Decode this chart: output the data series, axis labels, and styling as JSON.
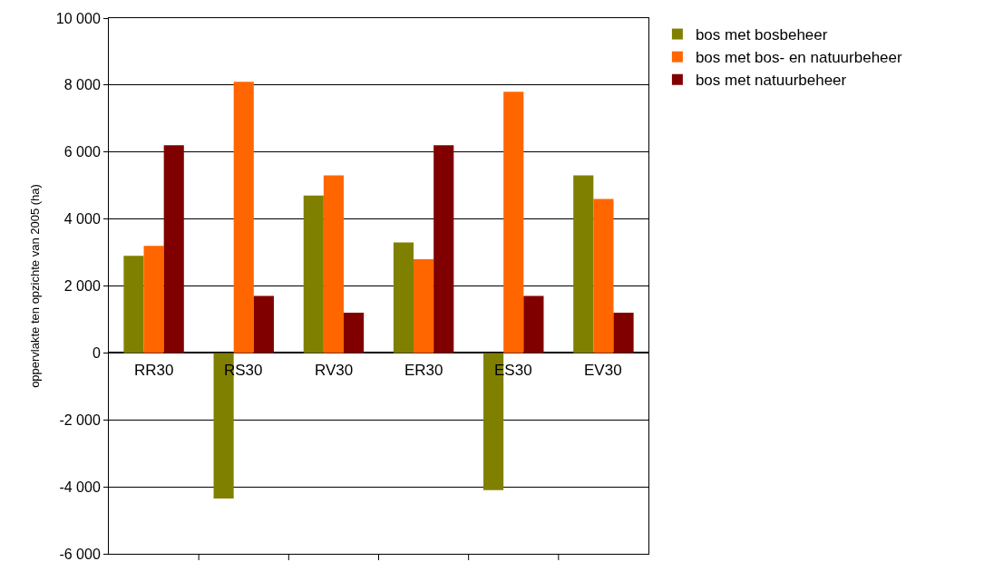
{
  "chart_data": {
    "type": "bar",
    "ylabel": "oppervlakte ten opzichte van 2005 (ha)",
    "categories": [
      "RR30",
      "RS30",
      "RV30",
      "ER30",
      "ES30",
      "EV30"
    ],
    "series": [
      {
        "name": "bos met bosbeheer",
        "color": "#808000",
        "values": [
          2900,
          -4350,
          4700,
          3300,
          -4100,
          5300
        ]
      },
      {
        "name": "bos met bos- en natuurbeheer",
        "color": "#ff6600",
        "values": [
          3200,
          8100,
          5300,
          2800,
          7800,
          4600
        ]
      },
      {
        "name": "bos met natuurbeheer",
        "color": "#800000",
        "values": [
          6200,
          1700,
          1200,
          6200,
          1700,
          1200
        ]
      }
    ],
    "ylim": [
      -6000,
      10000
    ],
    "yticks": [
      {
        "value": -6000,
        "label": "-6 000"
      },
      {
        "value": -4000,
        "label": "-4 000"
      },
      {
        "value": -2000,
        "label": "-2 000"
      },
      {
        "value": 0,
        "label": "0"
      },
      {
        "value": 2000,
        "label": "2 000"
      },
      {
        "value": 4000,
        "label": "4 000"
      },
      {
        "value": 6000,
        "label": "6 000"
      },
      {
        "value": 8000,
        "label": "8 000"
      },
      {
        "value": 10000,
        "label": "10 000"
      }
    ],
    "grid": "y",
    "legend": "top right"
  }
}
